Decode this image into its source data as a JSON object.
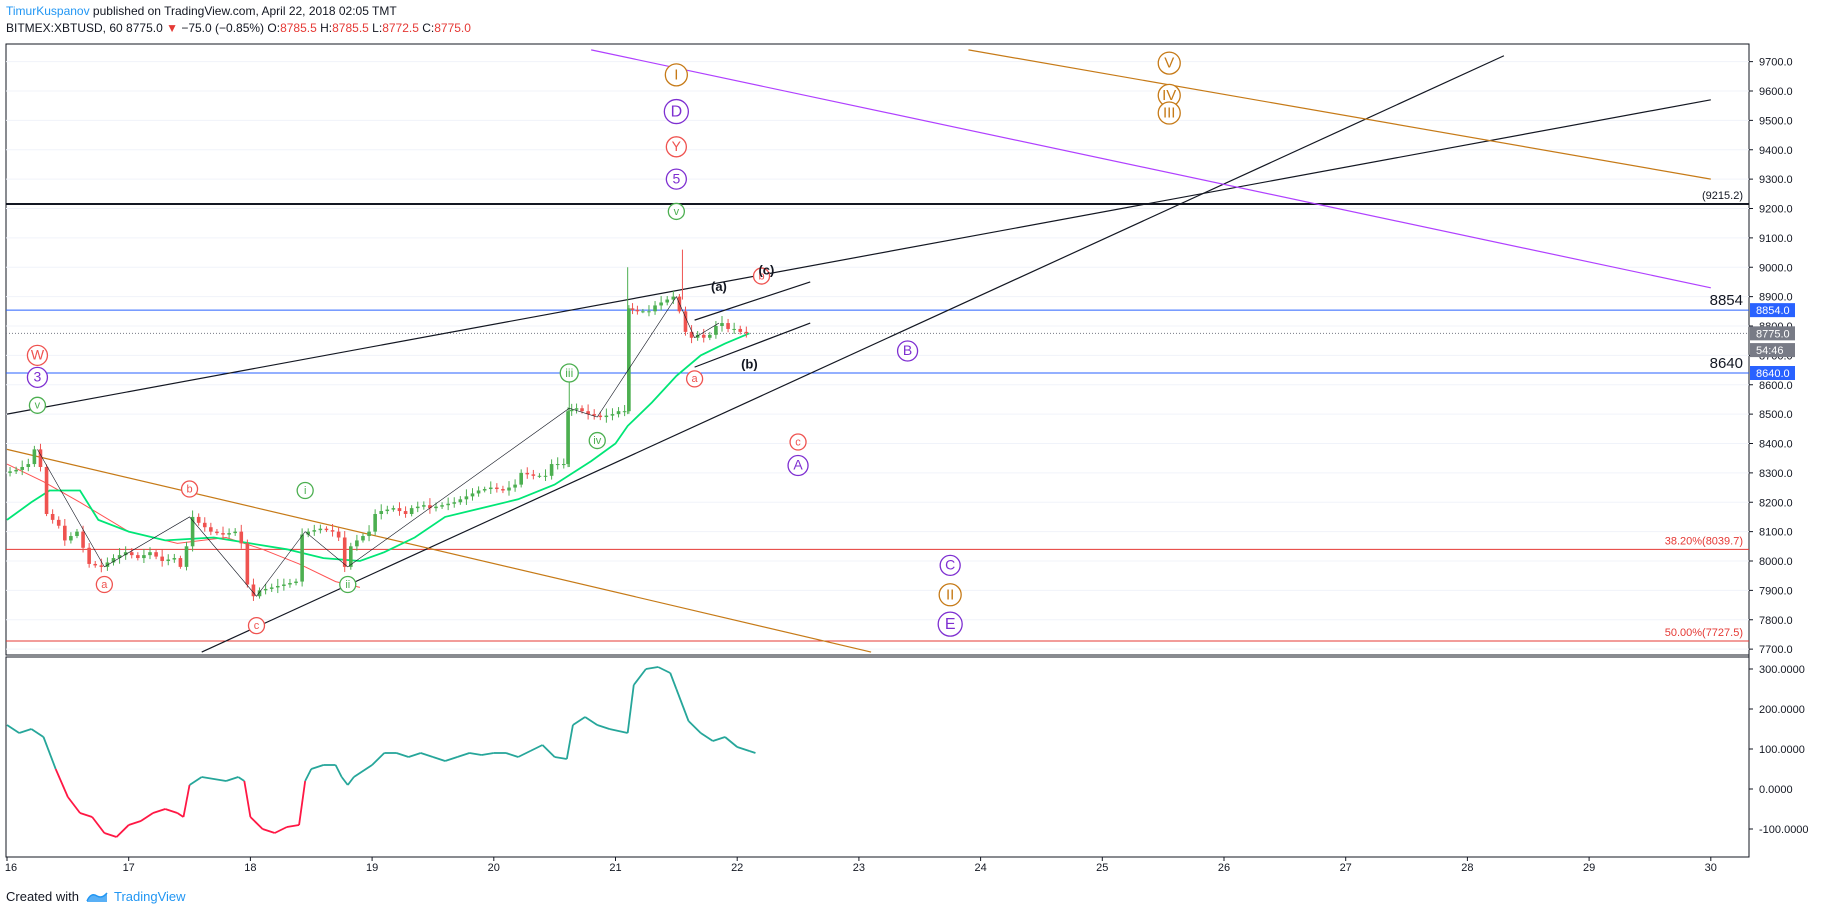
{
  "header": {
    "author": "TimurKuspanov",
    "published": " published on TradingView.com, April 22, 2018 02:05 TMT",
    "symbol_tf": "BITMEX:XBTUSD, 60",
    "last": "8775.0",
    "arrow": "▼",
    "change": "−75.0 (−0.85%)",
    "o_label": "O:",
    "o_value": "8785.5",
    "h_label": "H:",
    "h_value": "8785.5",
    "l_label": "L:",
    "l_value": "8772.5",
    "c_label": "C:",
    "c_value": "8775.0"
  },
  "footer": {
    "created_with": "Created with",
    "brand": "TradingView"
  },
  "colors": {
    "up": "#4caf50",
    "down": "#ef5350",
    "ma_green": "#00e676",
    "ma_red": "#ff5252",
    "osc": "#26a69a",
    "osc_neg": "#ff1744",
    "fib": "#e53935",
    "blue_line": "#2962ff",
    "purple": "#7e2fd1",
    "orange": "#c67a17",
    "black": "#131722"
  },
  "chart_data": [
    {
      "type": "line",
      "series_kind": "candlestick",
      "ylim": [
        7680,
        9760
      ],
      "xlim_days": [
        16,
        30.25
      ],
      "x_ticks": [
        "16",
        "17",
        "18",
        "19",
        "20",
        "21",
        "22",
        "23",
        "24",
        "25",
        "26",
        "27",
        "28",
        "29",
        "30"
      ],
      "y_ticks": [
        "7700.0",
        "7800.0",
        "7900.0",
        "8000.0",
        "8100.0",
        "8200.0",
        "8300.0",
        "8400.0",
        "8500.0",
        "8600.0",
        "8700.0",
        "8800.0",
        "8900.0",
        "9000.0",
        "9100.0",
        "9200.0",
        "9300.0",
        "9400.0",
        "9500.0",
        "9600.0",
        "9700.0"
      ],
      "price_path": [
        [
          16.0,
          8300
        ],
        [
          16.1,
          8310
        ],
        [
          16.2,
          8330
        ],
        [
          16.25,
          8380
        ],
        [
          16.3,
          8320
        ],
        [
          16.35,
          8160
        ],
        [
          16.45,
          8120
        ],
        [
          16.5,
          8070
        ],
        [
          16.6,
          8100
        ],
        [
          16.7,
          7990
        ],
        [
          16.8,
          7980
        ],
        [
          16.9,
          8010
        ],
        [
          17.0,
          8030
        ],
        [
          17.1,
          8010
        ],
        [
          17.2,
          8030
        ],
        [
          17.3,
          8000
        ],
        [
          17.4,
          8010
        ],
        [
          17.45,
          7980
        ],
        [
          17.5,
          8050
        ],
        [
          17.55,
          8150
        ],
        [
          17.6,
          8130
        ],
        [
          17.7,
          8100
        ],
        [
          17.8,
          8090
        ],
        [
          17.9,
          8100
        ],
        [
          17.95,
          8060
        ],
        [
          18.0,
          7920
        ],
        [
          18.05,
          7880
        ],
        [
          18.1,
          7900
        ],
        [
          18.2,
          7910
        ],
        [
          18.3,
          7920
        ],
        [
          18.4,
          7930
        ],
        [
          18.45,
          8090
        ],
        [
          18.5,
          8100
        ],
        [
          18.6,
          8110
        ],
        [
          18.7,
          8100
        ],
        [
          18.75,
          8080
        ],
        [
          18.8,
          7980
        ],
        [
          18.85,
          8050
        ],
        [
          18.9,
          8070
        ],
        [
          19.0,
          8100
        ],
        [
          19.05,
          8160
        ],
        [
          19.1,
          8170
        ],
        [
          19.2,
          8180
        ],
        [
          19.3,
          8160
        ],
        [
          19.35,
          8180
        ],
        [
          19.45,
          8190
        ],
        [
          19.5,
          8180
        ],
        [
          19.6,
          8190
        ],
        [
          19.7,
          8200
        ],
        [
          19.8,
          8220
        ],
        [
          19.9,
          8240
        ],
        [
          20.0,
          8250
        ],
        [
          20.1,
          8240
        ],
        [
          20.2,
          8260
        ],
        [
          20.25,
          8300
        ],
        [
          20.35,
          8290
        ],
        [
          20.45,
          8290
        ],
        [
          20.5,
          8330
        ],
        [
          20.6,
          8330
        ],
        [
          20.62,
          8510
        ],
        [
          20.7,
          8520
        ],
        [
          20.8,
          8500
        ],
        [
          20.9,
          8490
        ],
        [
          21.0,
          8500
        ],
        [
          21.05,
          8510
        ],
        [
          21.1,
          8510
        ],
        [
          21.12,
          8860
        ],
        [
          21.2,
          8850
        ],
        [
          21.3,
          8850
        ],
        [
          21.35,
          8870
        ],
        [
          21.4,
          8880
        ],
        [
          21.45,
          8890
        ],
        [
          21.5,
          8900
        ],
        [
          21.55,
          8850
        ],
        [
          21.6,
          8780
        ],
        [
          21.65,
          8760
        ],
        [
          21.7,
          8770
        ],
        [
          21.75,
          8760
        ],
        [
          21.8,
          8770
        ],
        [
          21.85,
          8800
        ],
        [
          21.9,
          8810
        ],
        [
          21.95,
          8790
        ],
        [
          22.0,
          8790
        ],
        [
          22.05,
          8780
        ],
        [
          22.1,
          8775
        ]
      ],
      "ma_green": [
        [
          16.0,
          8140
        ],
        [
          16.2,
          8200
        ],
        [
          16.35,
          8240
        ],
        [
          16.6,
          8240
        ],
        [
          16.75,
          8140
        ],
        [
          17.0,
          8100
        ],
        [
          17.3,
          8070
        ],
        [
          17.7,
          8080
        ],
        [
          18.0,
          8060
        ],
        [
          18.3,
          8040
        ],
        [
          18.6,
          8010
        ],
        [
          18.9,
          8000
        ],
        [
          19.1,
          8030
        ],
        [
          19.35,
          8080
        ],
        [
          19.6,
          8150
        ],
        [
          19.9,
          8180
        ],
        [
          20.2,
          8210
        ],
        [
          20.5,
          8260
        ],
        [
          20.8,
          8340
        ],
        [
          21.0,
          8400
        ],
        [
          21.1,
          8460
        ],
        [
          21.3,
          8540
        ],
        [
          21.5,
          8630
        ],
        [
          21.7,
          8700
        ],
        [
          21.9,
          8740
        ],
        [
          22.1,
          8775
        ]
      ],
      "ma_red": [
        [
          16.0,
          8330
        ],
        [
          16.3,
          8270
        ],
        [
          16.6,
          8200
        ],
        [
          17.0,
          8100
        ],
        [
          17.4,
          8060
        ],
        [
          17.8,
          8080
        ],
        [
          18.1,
          8040
        ],
        [
          18.4,
          7990
        ],
        [
          18.7,
          7930
        ],
        [
          18.9,
          7910
        ]
      ],
      "horizontal_levels": [
        {
          "price": 9215.2,
          "label": "(9215.2)",
          "color": "#131722"
        },
        {
          "price": 8854,
          "label": "8854",
          "color": "#2962ff"
        },
        {
          "price": 8640,
          "label": "8640",
          "color": "#2962ff"
        },
        {
          "price": 8039.7,
          "label": "38.20%(8039.7)",
          "color": "#e53935"
        },
        {
          "price": 7727.5,
          "label": "50.00%(7727.5)",
          "color": "#e53935"
        }
      ],
      "price_tags": [
        {
          "price": 8854,
          "text": "8854.0",
          "bg": "#2962ff",
          "fg": "#ffffff"
        },
        {
          "price": 8775,
          "text": "8775.0",
          "bg": "#787b86",
          "fg": "#ffffff"
        },
        {
          "price": 8718,
          "text": "54:46",
          "bg": "#787b86",
          "fg": "#ffffff"
        },
        {
          "price": 8640,
          "text": "8640.0",
          "bg": "#2962ff",
          "fg": "#ffffff"
        }
      ],
      "trend_lines": [
        {
          "p1": [
            16.0,
            8500
          ],
          "p2": [
            30.0,
            9570
          ],
          "color": "#131722"
        },
        {
          "p1": [
            17.6,
            7690
          ],
          "p2": [
            28.3,
            9720
          ],
          "color": "#131722"
        },
        {
          "p1": [
            16.0,
            8380
          ],
          "p2": [
            23.1,
            7690
          ],
          "color": "#c67a17"
        },
        {
          "p1": [
            23.9,
            9740
          ],
          "p2": [
            30.0,
            9300
          ],
          "color": "#c67a17"
        },
        {
          "p1": [
            20.8,
            9740
          ],
          "p2": [
            30.0,
            8930
          ],
          "color": "#b040ff"
        },
        {
          "p1": [
            21.65,
            8820
          ],
          "p2": [
            22.6,
            8950
          ],
          "color": "#131722"
        },
        {
          "p1": [
            21.65,
            8660
          ],
          "p2": [
            22.6,
            8810
          ],
          "color": "#131722"
        }
      ],
      "wave_labels": [
        {
          "text": "W",
          "day": 16.25,
          "price": 8700,
          "color": "#ef5350",
          "r": 10
        },
        {
          "text": "3",
          "day": 16.25,
          "price": 8625,
          "color": "#7e2fd1",
          "r": 10
        },
        {
          "text": "v",
          "day": 16.25,
          "price": 8530,
          "color": "#4caf50",
          "r": 8
        },
        {
          "text": "a",
          "day": 16.8,
          "price": 7920,
          "color": "#ef5350",
          "r": 8
        },
        {
          "text": "b",
          "day": 17.5,
          "price": 8245,
          "color": "#ef5350",
          "r": 8
        },
        {
          "text": "c",
          "day": 18.05,
          "price": 7780,
          "color": "#ef5350",
          "r": 8
        },
        {
          "text": "i",
          "day": 18.45,
          "price": 8240,
          "color": "#4caf50",
          "r": 8
        },
        {
          "text": "ii",
          "day": 18.8,
          "price": 7920,
          "color": "#4caf50",
          "r": 8
        },
        {
          "text": "iii",
          "day": 20.62,
          "price": 8640,
          "color": "#4caf50",
          "r": 9
        },
        {
          "text": "iv",
          "day": 20.85,
          "price": 8410,
          "color": "#4caf50",
          "r": 8
        },
        {
          "text": "I",
          "day": 21.5,
          "price": 9655,
          "color": "#c67a17",
          "r": 11
        },
        {
          "text": "D",
          "day": 21.5,
          "price": 9530,
          "color": "#7e2fd1",
          "r": 12
        },
        {
          "text": "Y",
          "day": 21.5,
          "price": 9410,
          "color": "#ef5350",
          "r": 10
        },
        {
          "text": "5",
          "day": 21.5,
          "price": 9300,
          "color": "#7e2fd1",
          "r": 10
        },
        {
          "text": "v",
          "day": 21.5,
          "price": 9190,
          "color": "#4caf50",
          "r": 8
        },
        {
          "text": "a",
          "day": 21.65,
          "price": 8620,
          "color": "#ef5350",
          "r": 8
        },
        {
          "text": "b",
          "day": 22.2,
          "price": 8970,
          "color": "#ef5350",
          "r": 8
        },
        {
          "text": "c",
          "day": 22.5,
          "price": 8405,
          "color": "#ef5350",
          "r": 8
        },
        {
          "text": "A",
          "day": 22.5,
          "price": 8325,
          "color": "#7e2fd1",
          "r": 10
        },
        {
          "text": "B",
          "day": 23.4,
          "price": 8715,
          "color": "#7e2fd1",
          "r": 10
        },
        {
          "text": "C",
          "day": 23.75,
          "price": 7985,
          "color": "#7e2fd1",
          "r": 10
        },
        {
          "text": "II",
          "day": 23.75,
          "price": 7885,
          "color": "#c67a17",
          "r": 11
        },
        {
          "text": "E",
          "day": 23.75,
          "price": 7785,
          "color": "#7e2fd1",
          "r": 12
        },
        {
          "text": "V",
          "day": 25.55,
          "price": 9695,
          "color": "#c67a17",
          "r": 11
        },
        {
          "text": "IV",
          "day": 25.55,
          "price": 9585,
          "color": "#c67a17",
          "r": 11
        },
        {
          "text": "III",
          "day": 25.55,
          "price": 9525,
          "color": "#c67a17",
          "r": 11
        }
      ],
      "text_labels": [
        {
          "text": "(a)",
          "day": 21.85,
          "price": 8920
        },
        {
          "text": "(c)",
          "day": 22.24,
          "price": 8975
        },
        {
          "text": "(b)",
          "day": 22.1,
          "price": 8655
        }
      ]
    },
    {
      "type": "line",
      "series_kind": "oscillator",
      "ylim": [
        -170,
        330
      ],
      "y_ticks": [
        "300.0000",
        "200.0000",
        "100.0000",
        "0.0000",
        "-100.0000"
      ],
      "values": [
        [
          16.0,
          160
        ],
        [
          16.1,
          140
        ],
        [
          16.2,
          150
        ],
        [
          16.3,
          130
        ],
        [
          16.4,
          50
        ],
        [
          16.5,
          -20
        ],
        [
          16.6,
          -60
        ],
        [
          16.7,
          -70
        ],
        [
          16.8,
          -110
        ],
        [
          16.9,
          -120
        ],
        [
          17.0,
          -90
        ],
        [
          17.1,
          -80
        ],
        [
          17.2,
          -60
        ],
        [
          17.3,
          -50
        ],
        [
          17.4,
          -60
        ],
        [
          17.45,
          -70
        ],
        [
          17.5,
          10
        ],
        [
          17.6,
          30
        ],
        [
          17.8,
          20
        ],
        [
          17.9,
          30
        ],
        [
          17.95,
          20
        ],
        [
          18.0,
          -70
        ],
        [
          18.1,
          -100
        ],
        [
          18.2,
          -110
        ],
        [
          18.3,
          -95
        ],
        [
          18.4,
          -90
        ],
        [
          18.45,
          20
        ],
        [
          18.5,
          50
        ],
        [
          18.6,
          60
        ],
        [
          18.7,
          60
        ],
        [
          18.75,
          30
        ],
        [
          18.8,
          10
        ],
        [
          18.85,
          30
        ],
        [
          19.0,
          60
        ],
        [
          19.1,
          90
        ],
        [
          19.2,
          90
        ],
        [
          19.3,
          80
        ],
        [
          19.4,
          90
        ],
        [
          19.5,
          80
        ],
        [
          19.6,
          70
        ],
        [
          19.7,
          80
        ],
        [
          19.8,
          90
        ],
        [
          19.9,
          85
        ],
        [
          20.0,
          90
        ],
        [
          20.1,
          90
        ],
        [
          20.2,
          80
        ],
        [
          20.3,
          95
        ],
        [
          20.4,
          110
        ],
        [
          20.5,
          80
        ],
        [
          20.6,
          75
        ],
        [
          20.65,
          160
        ],
        [
          20.75,
          180
        ],
        [
          20.85,
          160
        ],
        [
          20.95,
          150
        ],
        [
          21.1,
          140
        ],
        [
          21.15,
          260
        ],
        [
          21.25,
          300
        ],
        [
          21.35,
          305
        ],
        [
          21.45,
          290
        ],
        [
          21.5,
          250
        ],
        [
          21.6,
          170
        ],
        [
          21.7,
          140
        ],
        [
          21.8,
          120
        ],
        [
          21.9,
          130
        ],
        [
          22.0,
          105
        ],
        [
          22.1,
          95
        ],
        [
          22.15,
          90
        ]
      ]
    }
  ]
}
